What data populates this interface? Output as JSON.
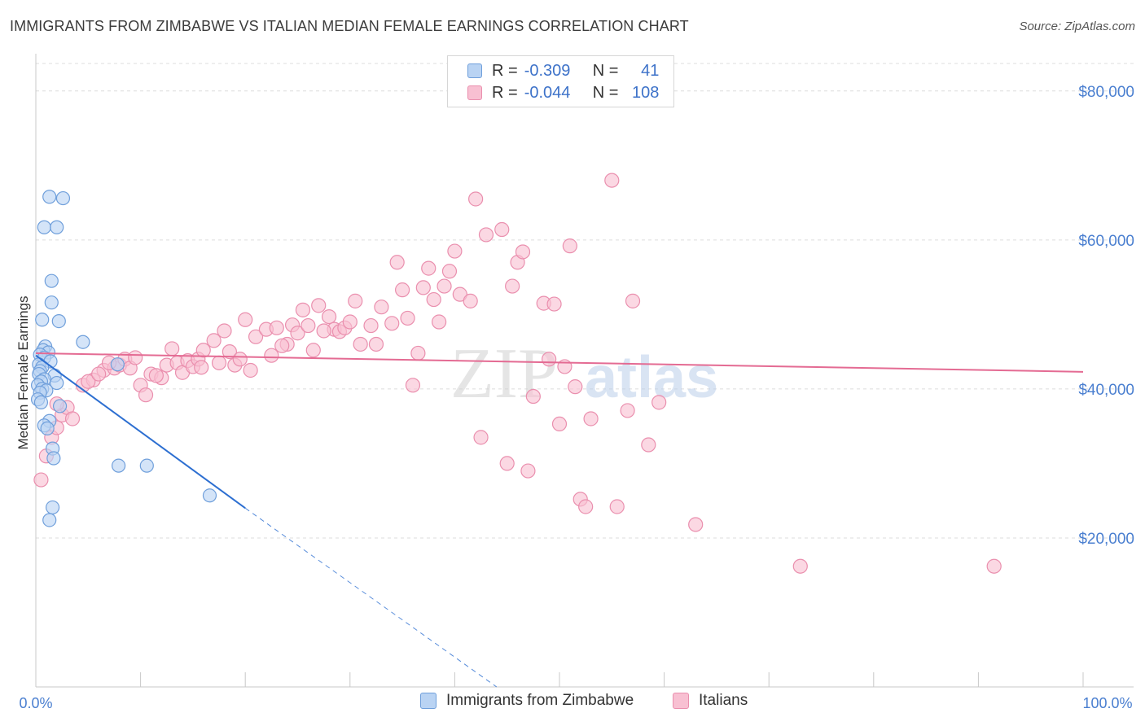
{
  "header": {
    "title": "IMMIGRANTS FROM ZIMBABWE VS ITALIAN MEDIAN FEMALE EARNINGS CORRELATION CHART",
    "source": "Source: ZipAtlas.com"
  },
  "legend": {
    "rows": [
      {
        "r_label": "R =",
        "r_value": "-0.309",
        "n_label": "N =",
        "n_value": "41"
      },
      {
        "r_label": "R =",
        "r_value": "-0.044",
        "n_label": "N =",
        "n_value": "108"
      }
    ]
  },
  "bottom_legend": [
    "Immigrants from Zimbabwe",
    "Italians"
  ],
  "watermark": {
    "zip": "ZIP",
    "atlas": "atlas"
  },
  "colors": {
    "zimbabwe_fill": "#b9d3f3",
    "zimbabwe_stroke": "#6f9fdb",
    "zimbabwe_line": "#2d6fd1",
    "italians_fill": "#f8c0d2",
    "italians_stroke": "#ea8fae",
    "italians_line": "#e46b93",
    "tick_text": "#4a7fd0",
    "grid": "#dcdcdc"
  },
  "chart_data": {
    "type": "scatter",
    "title": "IMMIGRANTS FROM ZIMBABWE VS ITALIAN MEDIAN FEMALE EARNINGS CORRELATION CHART",
    "xlabel": "",
    "ylabel": "Median Female Earnings",
    "xlim": [
      0,
      100
    ],
    "ylim": [
      0,
      85000
    ],
    "x_tick_labels": [
      "0.0%",
      "100.0%"
    ],
    "y_ticks": [
      20000,
      40000,
      60000,
      80000
    ],
    "y_tick_labels": [
      "$20,000",
      "$40,000",
      "$60,000",
      "$80,000"
    ],
    "grid": "horizontal dashed",
    "legend_placement": "top-center",
    "series": [
      {
        "name": "Immigrants from Zimbabwe",
        "r": -0.309,
        "n": 41,
        "trend": {
          "x": [
            0,
            20
          ],
          "y": [
            44500,
            24000
          ],
          "dashed_extension_to": [
            44,
            0
          ]
        },
        "points": [
          [
            1.3,
            65800
          ],
          [
            2.6,
            65600
          ],
          [
            0.8,
            61700
          ],
          [
            2.0,
            61700
          ],
          [
            1.5,
            54500
          ],
          [
            1.5,
            51600
          ],
          [
            0.6,
            49300
          ],
          [
            2.2,
            49100
          ],
          [
            4.5,
            46300
          ],
          [
            0.9,
            45700
          ],
          [
            0.7,
            45200
          ],
          [
            1.2,
            44900
          ],
          [
            0.4,
            44600
          ],
          [
            0.8,
            44200
          ],
          [
            1.4,
            43700
          ],
          [
            0.3,
            43300
          ],
          [
            0.6,
            42900
          ],
          [
            0.4,
            42400
          ],
          [
            0.3,
            42000
          ],
          [
            1.8,
            41800
          ],
          [
            0.8,
            41300
          ],
          [
            0.5,
            41000
          ],
          [
            2.0,
            40800
          ],
          [
            0.2,
            40500
          ],
          [
            0.6,
            40000
          ],
          [
            1.0,
            39800
          ],
          [
            0.4,
            39500
          ],
          [
            0.2,
            38600
          ],
          [
            0.5,
            38200
          ],
          [
            2.3,
            37700
          ],
          [
            1.3,
            35700
          ],
          [
            0.8,
            35100
          ],
          [
            1.1,
            34700
          ],
          [
            1.6,
            32000
          ],
          [
            1.7,
            30700
          ],
          [
            7.8,
            43300
          ],
          [
            7.9,
            29700
          ],
          [
            10.6,
            29700
          ],
          [
            16.6,
            25700
          ],
          [
            1.6,
            24100
          ],
          [
            1.3,
            22400
          ]
        ]
      },
      {
        "name": "Italians",
        "r": -0.044,
        "n": 108,
        "trend": {
          "x": [
            0,
            100
          ],
          "y": [
            44800,
            42300
          ]
        },
        "points": [
          [
            0.5,
            27800
          ],
          [
            1.0,
            31000
          ],
          [
            1.5,
            33500
          ],
          [
            2.0,
            34800
          ],
          [
            2.5,
            36500
          ],
          [
            3.0,
            37500
          ],
          [
            4.5,
            40500
          ],
          [
            5.5,
            41200
          ],
          [
            6.5,
            42500
          ],
          [
            7.5,
            42800
          ],
          [
            8.0,
            43200
          ],
          [
            8.5,
            44000
          ],
          [
            9.0,
            42800
          ],
          [
            10.0,
            40500
          ],
          [
            10.5,
            39200
          ],
          [
            11.0,
            42000
          ],
          [
            12.0,
            41500
          ],
          [
            12.5,
            43200
          ],
          [
            13.0,
            45400
          ],
          [
            13.5,
            43500
          ],
          [
            14.0,
            42200
          ],
          [
            14.5,
            43800
          ],
          [
            15.0,
            43000
          ],
          [
            15.5,
            44000
          ],
          [
            16.0,
            45200
          ],
          [
            17.0,
            46500
          ],
          [
            17.5,
            43500
          ],
          [
            18.0,
            47800
          ],
          [
            18.5,
            45000
          ],
          [
            19.0,
            43200
          ],
          [
            19.5,
            44000
          ],
          [
            20.0,
            49300
          ],
          [
            21.0,
            47000
          ],
          [
            22.0,
            48000
          ],
          [
            22.5,
            44500
          ],
          [
            23.0,
            48200
          ],
          [
            24.0,
            46000
          ],
          [
            24.5,
            48600
          ],
          [
            25.0,
            47500
          ],
          [
            25.5,
            50600
          ],
          [
            26.0,
            48500
          ],
          [
            26.5,
            45200
          ],
          [
            27.0,
            51200
          ],
          [
            28.0,
            49700
          ],
          [
            28.5,
            48000
          ],
          [
            29.0,
            47700
          ],
          [
            29.5,
            48200
          ],
          [
            30.0,
            49000
          ],
          [
            30.5,
            51800
          ],
          [
            31.0,
            46000
          ],
          [
            32.0,
            48500
          ],
          [
            32.5,
            46000
          ],
          [
            33.0,
            51000
          ],
          [
            34.0,
            48800
          ],
          [
            34.5,
            57000
          ],
          [
            35.0,
            53300
          ],
          [
            35.5,
            49500
          ],
          [
            36.0,
            40500
          ],
          [
            36.5,
            44800
          ],
          [
            37.0,
            53600
          ],
          [
            37.5,
            56200
          ],
          [
            38.0,
            52000
          ],
          [
            38.5,
            49000
          ],
          [
            39.0,
            53800
          ],
          [
            39.5,
            55800
          ],
          [
            40.0,
            58500
          ],
          [
            40.5,
            52700
          ],
          [
            41.5,
            51800
          ],
          [
            42.0,
            65500
          ],
          [
            42.5,
            33500
          ],
          [
            43.0,
            60700
          ],
          [
            44.5,
            61400
          ],
          [
            45.0,
            30000
          ],
          [
            45.5,
            53800
          ],
          [
            46.0,
            57000
          ],
          [
            46.5,
            58400
          ],
          [
            47.0,
            29000
          ],
          [
            47.5,
            39000
          ],
          [
            48.5,
            51500
          ],
          [
            49.0,
            44000
          ],
          [
            49.5,
            51400
          ],
          [
            50.0,
            35300
          ],
          [
            50.5,
            43000
          ],
          [
            51.0,
            59200
          ],
          [
            51.5,
            40300
          ],
          [
            52.0,
            25200
          ],
          [
            52.5,
            24200
          ],
          [
            53.0,
            36000
          ],
          [
            55.0,
            68000
          ],
          [
            55.5,
            24200
          ],
          [
            56.5,
            37100
          ],
          [
            57.0,
            51800
          ],
          [
            58.5,
            32500
          ],
          [
            59.5,
            38200
          ],
          [
            63.0,
            21800
          ],
          [
            73.0,
            16200
          ],
          [
            91.5,
            16200
          ],
          [
            2.0,
            38000
          ],
          [
            3.5,
            36000
          ],
          [
            5.0,
            41000
          ],
          [
            6.0,
            42000
          ],
          [
            7.0,
            43500
          ],
          [
            9.5,
            44200
          ],
          [
            11.5,
            41800
          ],
          [
            15.8,
            42900
          ],
          [
            20.5,
            42500
          ],
          [
            23.5,
            45800
          ],
          [
            27.5,
            47800
          ]
        ]
      }
    ]
  }
}
